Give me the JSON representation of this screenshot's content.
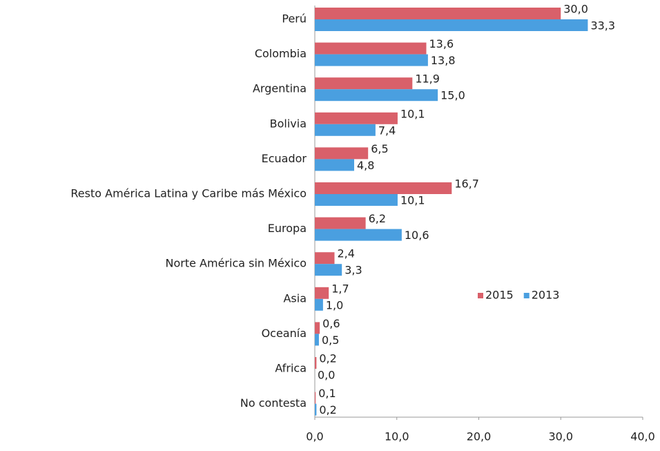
{
  "chart_data": {
    "type": "barh",
    "categories": [
      "Perú",
      "Colombia",
      "Argentina",
      "Bolivia",
      "Ecuador",
      "Resto América Latina y Caribe más México",
      "Europa",
      "Norte América sin México",
      "Asia",
      "Oceanía",
      "Africa",
      "No contesta"
    ],
    "series": [
      {
        "name": "2015",
        "color": "#d9606a",
        "values": [
          30.0,
          13.6,
          11.9,
          10.1,
          6.5,
          16.7,
          6.2,
          2.4,
          1.7,
          0.6,
          0.2,
          0.1
        ],
        "value_labels": [
          "30,0",
          "13,6",
          "11,9",
          "10,1",
          "6,5",
          "16,7",
          "6,2",
          "2,4",
          "1,7",
          "0,6",
          "0,2",
          "0,1"
        ]
      },
      {
        "name": "2013",
        "color": "#4a9fe0",
        "values": [
          33.3,
          13.8,
          15.0,
          7.4,
          4.8,
          10.1,
          10.6,
          3.3,
          1.0,
          0.5,
          0.0,
          0.2
        ],
        "value_labels": [
          "33,3",
          "13,8",
          "15,0",
          "7,4",
          "4,8",
          "10,1",
          "10,6",
          "3,3",
          "1,0",
          "0,5",
          "0,0",
          "0,2"
        ]
      }
    ],
    "xlim": [
      0,
      40
    ],
    "xticks": [
      {
        "value": 0,
        "label": "0,0"
      },
      {
        "value": 10,
        "label": "10,0"
      },
      {
        "value": 20,
        "label": "20,0"
      },
      {
        "value": 30,
        "label": "30,0"
      },
      {
        "value": 40,
        "label": "40,0"
      }
    ],
    "legend": "center-right"
  }
}
